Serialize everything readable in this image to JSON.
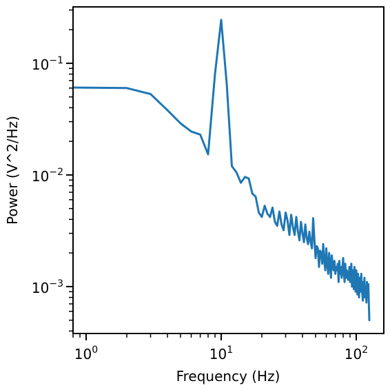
{
  "chart_data": {
    "type": "line",
    "title": "",
    "xlabel": "Frequency (Hz)",
    "ylabel": "Power (V^2/Hz)",
    "xscale": "log",
    "yscale": "log",
    "xlim": [
      0.8,
      160
    ],
    "ylim": [
      0.00038,
      0.32
    ],
    "grid": false,
    "legend": "none",
    "x_tick_labels": [
      {
        "base": "10",
        "exp": "0",
        "value": 1
      },
      {
        "base": "10",
        "exp": "1",
        "value": 10
      },
      {
        "base": "10",
        "exp": "2",
        "value": 100
      }
    ],
    "y_tick_labels": [
      {
        "base": "10",
        "exp": "−1",
        "value": 0.1
      },
      {
        "base": "10",
        "exp": "−2",
        "value": 0.01
      },
      {
        "base": "10",
        "exp": "−3",
        "value": 0.001
      }
    ],
    "series": [
      {
        "color": "#1f77b4",
        "x": [
          0.5,
          1,
          2,
          3,
          4,
          5,
          6,
          7,
          8,
          9,
          10,
          11,
          12,
          13,
          14,
          15,
          16,
          17,
          18,
          19,
          20,
          21,
          22,
          23,
          24,
          25,
          26,
          27,
          28,
          29,
          30,
          31,
          32,
          33,
          34,
          35,
          36,
          37,
          38,
          39,
          40,
          41,
          42,
          43,
          44,
          45,
          46,
          47,
          48,
          49,
          50,
          51,
          52,
          53,
          54,
          55,
          56,
          57,
          58,
          59,
          60,
          61,
          62,
          63,
          64,
          65,
          66,
          67,
          68,
          69,
          70,
          71,
          72,
          73,
          74,
          75,
          76,
          77,
          78,
          79,
          80,
          81,
          82,
          83,
          84,
          85,
          86,
          87,
          88,
          89,
          90,
          91,
          92,
          93,
          94,
          95,
          96,
          97,
          98,
          99,
          100,
          101,
          102,
          103,
          104,
          105,
          106,
          107,
          108,
          109,
          110,
          111,
          112,
          113,
          114,
          115,
          116,
          117,
          118,
          119,
          120,
          121,
          122,
          123,
          124,
          125
        ],
        "y": [
          0.061,
          0.0605,
          0.06,
          0.053,
          0.038,
          0.029,
          0.0245,
          0.023,
          0.0153,
          0.08,
          0.245,
          0.065,
          0.012,
          0.0105,
          0.0085,
          0.0096,
          0.0093,
          0.0068,
          0.0064,
          0.0046,
          0.0042,
          0.0053,
          0.0045,
          0.0042,
          0.0051,
          0.0038,
          0.0035,
          0.0047,
          0.0036,
          0.0032,
          0.0046,
          0.0039,
          0.0029,
          0.0044,
          0.0034,
          0.0029,
          0.0042,
          0.0031,
          0.0026,
          0.0038,
          0.003,
          0.0025,
          0.0036,
          0.0027,
          0.0024,
          0.0031,
          0.0025,
          0.0022,
          0.0041,
          0.0026,
          0.0018,
          0.0023,
          0.0022,
          0.0015,
          0.0021,
          0.002,
          0.0016,
          0.0024,
          0.0017,
          0.0014,
          0.0022,
          0.0016,
          0.0013,
          0.002,
          0.0016,
          0.0012,
          0.0019,
          0.0015,
          0.0014,
          0.0017,
          0.0013,
          0.0015,
          0.0014,
          0.0016,
          0.0011,
          0.0017,
          0.0013,
          0.0015,
          0.0012,
          0.0014,
          0.0018,
          0.0013,
          0.0011,
          0.0016,
          0.0012,
          0.0014,
          0.0013,
          0.00115,
          0.0012,
          0.0015,
          0.0011,
          0.0013,
          0.0016,
          0.001,
          0.0014,
          0.0012,
          0.00095,
          0.0015,
          0.0011,
          0.0009,
          0.0014,
          0.0012,
          0.00085,
          0.0013,
          0.0011,
          0.0008,
          0.0012,
          0.00105,
          0.0009,
          0.0013,
          0.001,
          0.00085,
          0.00075,
          0.0011,
          0.00095,
          0.0012,
          0.0008,
          0.001,
          0.0009,
          0.00072,
          0.0011,
          0.00095,
          0.0008,
          0.00105,
          0.0007,
          0.0005
        ]
      }
    ]
  }
}
